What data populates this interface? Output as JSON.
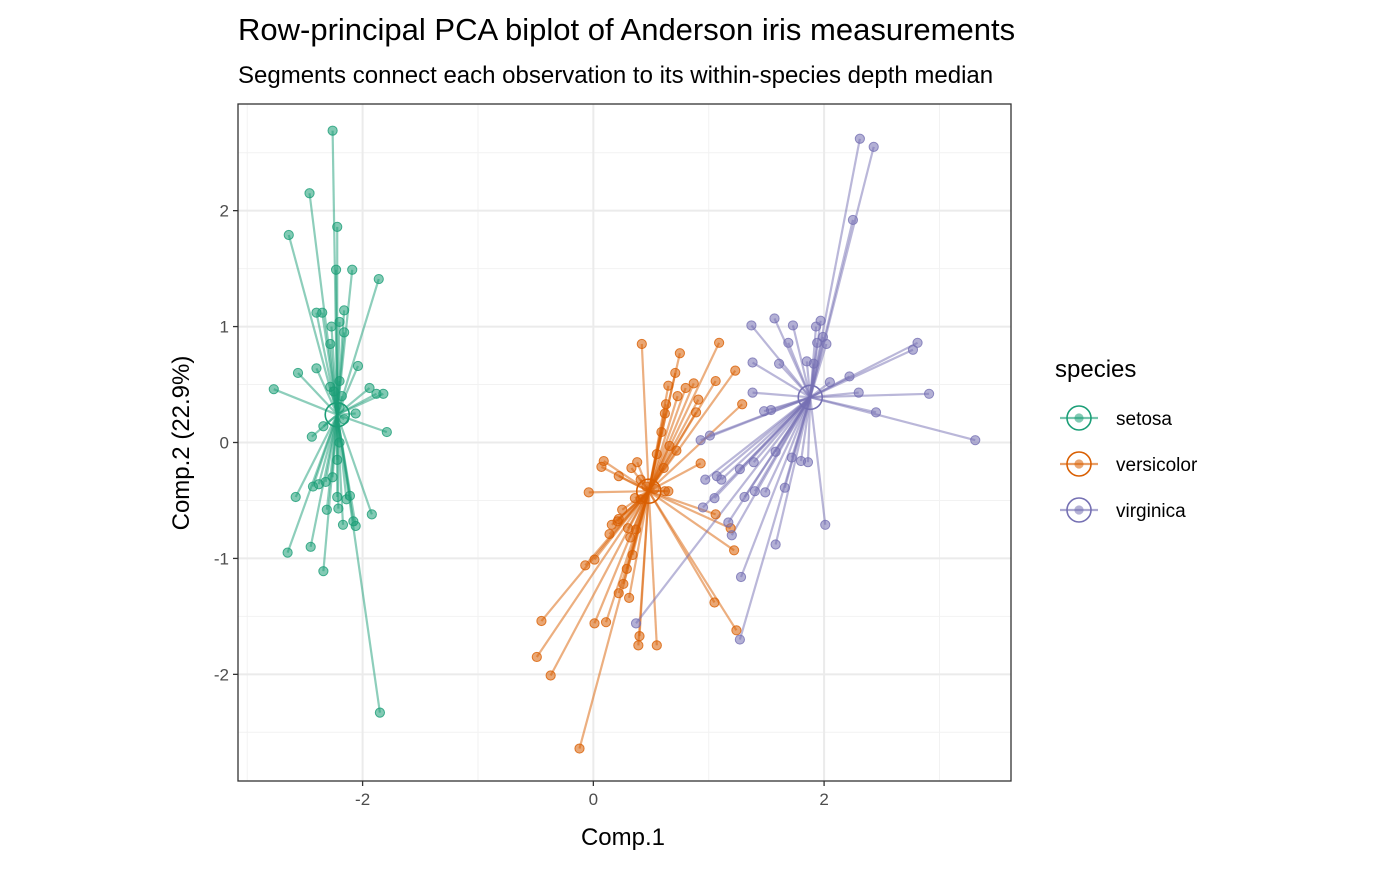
{
  "chart_data": {
    "type": "scatter",
    "title": "Row-principal PCA biplot of Anderson iris measurements",
    "subtitle": "Segments connect each observation to its within-species depth median",
    "xlabel": "Comp.1",
    "ylabel": "Comp.2 (22.9%)",
    "xlim": [
      -3.08,
      3.62
    ],
    "ylim": [
      -2.92,
      2.92
    ],
    "x_ticks": [
      -2,
      0,
      2
    ],
    "y_ticks": [
      -2,
      -1,
      0,
      1,
      2
    ],
    "x_tick_labels": [
      "-2",
      "0",
      "2"
    ],
    "y_tick_labels": [
      "-2",
      "-1",
      "0",
      "1",
      "2"
    ],
    "grid": true,
    "legend": {
      "title": "species",
      "position": "right"
    },
    "series": [
      {
        "name": "setosa",
        "color": "#1B9E77",
        "median": [
          -2.22,
          0.24
        ],
        "points": [
          [
            -2.26,
            2.69
          ],
          [
            -2.46,
            2.15
          ],
          [
            -2.64,
            1.79
          ],
          [
            -2.22,
            1.86
          ],
          [
            -2.23,
            1.49
          ],
          [
            -2.09,
            1.49
          ],
          [
            -1.86,
            1.41
          ],
          [
            -2.16,
            1.14
          ],
          [
            -2.35,
            1.12
          ],
          [
            -2.4,
            1.12
          ],
          [
            -2.2,
            1.04
          ],
          [
            -2.27,
            1.0
          ],
          [
            -2.16,
            0.95
          ],
          [
            -2.28,
            0.85
          ],
          [
            -2.04,
            0.66
          ],
          [
            -2.4,
            0.64
          ],
          [
            -2.56,
            0.6
          ],
          [
            -2.2,
            0.53
          ],
          [
            -2.28,
            0.48
          ],
          [
            -2.25,
            0.44
          ],
          [
            -2.18,
            0.4
          ],
          [
            -1.94,
            0.47
          ],
          [
            -1.88,
            0.42
          ],
          [
            -1.82,
            0.42
          ],
          [
            -2.77,
            0.46
          ],
          [
            -2.06,
            0.25
          ],
          [
            -2.2,
            0.3
          ],
          [
            -2.16,
            0.2
          ],
          [
            -2.34,
            0.14
          ],
          [
            -1.79,
            0.09
          ],
          [
            -2.44,
            0.05
          ],
          [
            -2.2,
            0.0
          ],
          [
            -2.22,
            -0.15
          ],
          [
            -2.26,
            -0.3
          ],
          [
            -2.32,
            -0.34
          ],
          [
            -2.38,
            -0.36
          ],
          [
            -2.43,
            -0.38
          ],
          [
            -2.58,
            -0.47
          ],
          [
            -2.22,
            -0.47
          ],
          [
            -2.14,
            -0.49
          ],
          [
            -2.11,
            -0.46
          ],
          [
            -2.21,
            -0.57
          ],
          [
            -2.31,
            -0.58
          ],
          [
            -1.92,
            -0.62
          ],
          [
            -2.08,
            -0.68
          ],
          [
            -2.06,
            -0.72
          ],
          [
            -2.17,
            -0.71
          ],
          [
            -2.45,
            -0.9
          ],
          [
            -2.65,
            -0.95
          ],
          [
            -2.34,
            -1.11
          ],
          [
            -1.85,
            -2.33
          ]
        ]
      },
      {
        "name": "versicolor",
        "color": "#D95F02",
        "median": [
          0.48,
          -0.42
        ],
        "points": [
          [
            0.42,
            0.85
          ],
          [
            0.75,
            0.77
          ],
          [
            1.09,
            0.86
          ],
          [
            0.71,
            0.6
          ],
          [
            1.06,
            0.53
          ],
          [
            0.87,
            0.51
          ],
          [
            1.23,
            0.62
          ],
          [
            0.8,
            0.47
          ],
          [
            0.65,
            0.49
          ],
          [
            0.73,
            0.4
          ],
          [
            0.91,
            0.37
          ],
          [
            0.63,
            0.33
          ],
          [
            1.29,
            0.33
          ],
          [
            0.89,
            0.26
          ],
          [
            0.62,
            0.25
          ],
          [
            0.59,
            0.09
          ],
          [
            0.66,
            -0.03
          ],
          [
            0.72,
            -0.07
          ],
          [
            0.55,
            -0.1
          ],
          [
            0.61,
            -0.22
          ],
          [
            0.38,
            -0.17
          ],
          [
            0.93,
            -0.18
          ],
          [
            0.09,
            -0.16
          ],
          [
            0.07,
            -0.21
          ],
          [
            0.33,
            -0.22
          ],
          [
            0.22,
            -0.29
          ],
          [
            0.41,
            -0.32
          ],
          [
            0.46,
            -0.38
          ],
          [
            0.53,
            -0.4
          ],
          [
            0.62,
            -0.42
          ],
          [
            0.65,
            -0.42
          ],
          [
            -0.04,
            -0.43
          ],
          [
            0.36,
            -0.48
          ],
          [
            0.41,
            -0.49
          ],
          [
            0.25,
            -0.58
          ],
          [
            0.22,
            -0.66
          ],
          [
            0.21,
            -0.68
          ],
          [
            0.16,
            -0.71
          ],
          [
            0.3,
            -0.74
          ],
          [
            0.37,
            -0.75
          ],
          [
            0.14,
            -0.79
          ],
          [
            0.32,
            -0.82
          ],
          [
            1.06,
            -0.62
          ],
          [
            1.19,
            -0.74
          ],
          [
            1.22,
            -0.93
          ],
          [
            0.34,
            -0.97
          ],
          [
            0.01,
            -1.01
          ],
          [
            0.29,
            -1.09
          ],
          [
            -0.07,
            -1.06
          ],
          [
            0.26,
            -1.22
          ],
          [
            0.22,
            -1.3
          ],
          [
            0.31,
            -1.34
          ],
          [
            1.05,
            -1.38
          ],
          [
            0.11,
            -1.55
          ],
          [
            0.01,
            -1.56
          ],
          [
            -0.45,
            -1.54
          ],
          [
            0.4,
            -1.67
          ],
          [
            0.55,
            -1.75
          ],
          [
            1.24,
            -1.62
          ],
          [
            0.39,
            -1.75
          ],
          [
            -0.49,
            -1.85
          ],
          [
            -0.37,
            -2.01
          ],
          [
            -0.12,
            -2.64
          ]
        ]
      },
      {
        "name": "virginica",
        "color": "#7570B3",
        "median": [
          1.88,
          0.39
        ],
        "points": [
          [
            2.31,
            2.62
          ],
          [
            2.43,
            2.55
          ],
          [
            2.25,
            1.92
          ],
          [
            1.37,
            1.01
          ],
          [
            1.57,
            1.07
          ],
          [
            1.73,
            1.01
          ],
          [
            1.93,
            1.0
          ],
          [
            1.97,
            1.05
          ],
          [
            1.99,
            0.91
          ],
          [
            1.94,
            0.86
          ],
          [
            2.02,
            0.85
          ],
          [
            1.69,
            0.86
          ],
          [
            2.81,
            0.86
          ],
          [
            2.77,
            0.8
          ],
          [
            1.85,
            0.7
          ],
          [
            1.91,
            0.68
          ],
          [
            1.61,
            0.68
          ],
          [
            1.38,
            0.69
          ],
          [
            2.22,
            0.57
          ],
          [
            2.05,
            0.52
          ],
          [
            1.38,
            0.43
          ],
          [
            2.3,
            0.43
          ],
          [
            2.91,
            0.42
          ],
          [
            1.48,
            0.27
          ],
          [
            1.54,
            0.28
          ],
          [
            2.45,
            0.26
          ],
          [
            3.31,
            0.02
          ],
          [
            1.01,
            0.06
          ],
          [
            0.93,
            0.02
          ],
          [
            1.58,
            -0.08
          ],
          [
            1.72,
            -0.13
          ],
          [
            1.39,
            -0.17
          ],
          [
            1.27,
            -0.23
          ],
          [
            1.8,
            -0.16
          ],
          [
            1.86,
            -0.17
          ],
          [
            1.07,
            -0.29
          ],
          [
            1.11,
            -0.32
          ],
          [
            0.97,
            -0.32
          ],
          [
            1.66,
            -0.39
          ],
          [
            1.4,
            -0.42
          ],
          [
            1.49,
            -0.43
          ],
          [
            1.31,
            -0.47
          ],
          [
            1.05,
            -0.48
          ],
          [
            0.95,
            -0.56
          ],
          [
            1.17,
            -0.69
          ],
          [
            2.01,
            -0.71
          ],
          [
            1.2,
            -0.8
          ],
          [
            1.58,
            -0.88
          ],
          [
            1.28,
            -1.16
          ],
          [
            0.37,
            -1.56
          ],
          [
            1.27,
            -1.7
          ]
        ]
      }
    ]
  }
}
